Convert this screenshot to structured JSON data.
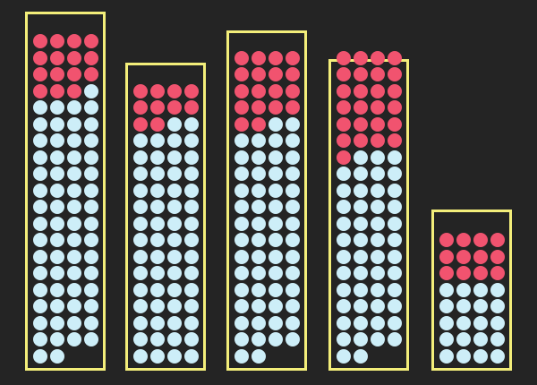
{
  "palette": {
    "background": "#242424",
    "border": "#f3ee7a",
    "red": "#f1536f",
    "blue": "#cdeef8"
  },
  "tubes": [
    {
      "total": 78,
      "red": 15
    },
    {
      "total": 68,
      "red": 10
    },
    {
      "total": 74,
      "red": 18
    },
    {
      "total": 74,
      "red": 25
    },
    {
      "total": 32,
      "red": 12
    }
  ]
}
